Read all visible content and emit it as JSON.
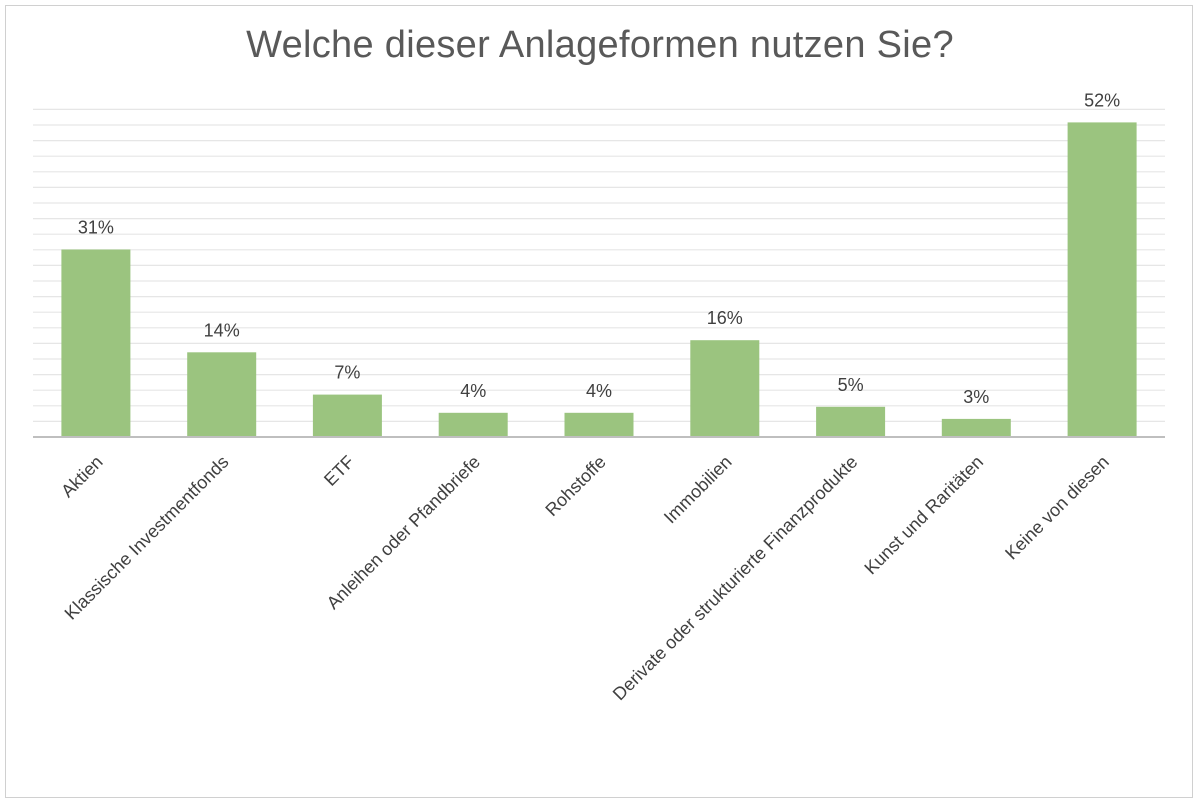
{
  "chart_data": {
    "type": "bar",
    "title": "Welche dieser Anlageformen nutzen Sie?",
    "xlabel": "",
    "ylabel": "",
    "categories": [
      "Aktien",
      "Klassische Investmentfonds",
      "ETF",
      "Anleihen oder Pfandbriefe",
      "Rohstoffe",
      "Immobilien",
      "Derivate oder strukturierte Finanzprodukte",
      "Kunst und Raritäten",
      "Keine von diesen"
    ],
    "values": [
      31,
      14,
      7,
      4,
      4,
      16,
      5,
      3,
      52
    ],
    "data_labels": [
      "31%",
      "14%",
      "7%",
      "4%",
      "4%",
      "16%",
      "5%",
      "3%",
      "52%"
    ],
    "ylim": [
      0,
      55
    ],
    "grid": true,
    "legend": "none",
    "colors": {
      "bar": "#9bc47f",
      "gridline": "#e6e6e6",
      "axis": "#bfbfbf",
      "text": "#404040",
      "title": "#595959"
    }
  }
}
